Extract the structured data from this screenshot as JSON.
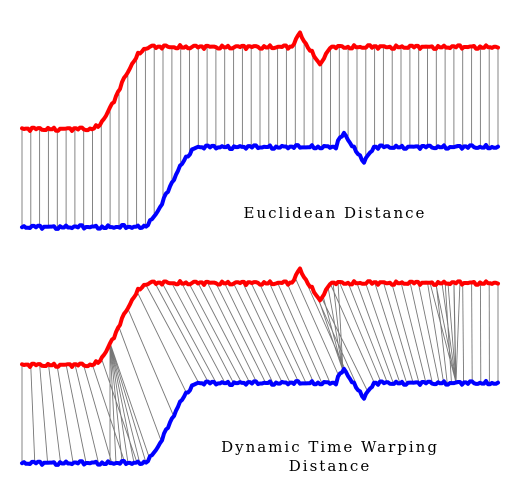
{
  "panels": {
    "euclidean": {
      "label": "Euclidean Distance",
      "matching": "euclidean"
    },
    "dtw": {
      "label_line1": "Dynamic Time Warping",
      "label_line2": "Distance",
      "matching": "dtw"
    }
  },
  "colors": {
    "series_a": "#ff0000",
    "series_b": "#0000ff",
    "connector": "#777777"
  }
}
